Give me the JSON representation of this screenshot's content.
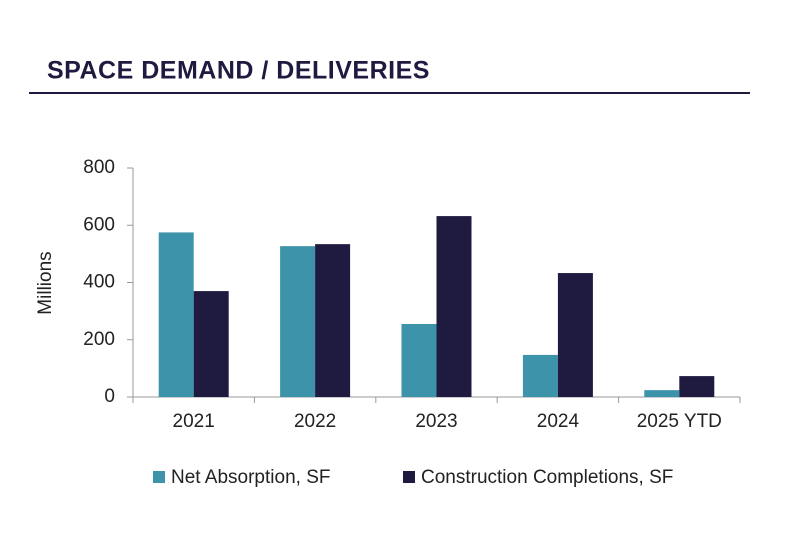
{
  "chart_data": {
    "type": "bar",
    "title": "SPACE DEMAND / DELIVERIES",
    "y_label": "Millions",
    "categories": [
      "2021",
      "2022",
      "2023",
      "2024",
      "2025 YTD"
    ],
    "series": [
      {
        "name": "Net Absorption, SF",
        "color": "#3d93aa",
        "values": [
          575,
          527,
          255,
          147,
          24
        ]
      },
      {
        "name": "Construction Completions, SF",
        "color": "#1e1a40",
        "values": [
          370,
          534,
          632,
          433,
          73
        ]
      }
    ],
    "ylim": [
      0,
      800
    ],
    "yticks": [
      0,
      200,
      400,
      600,
      800
    ],
    "grid": false,
    "legend": "bottom"
  }
}
